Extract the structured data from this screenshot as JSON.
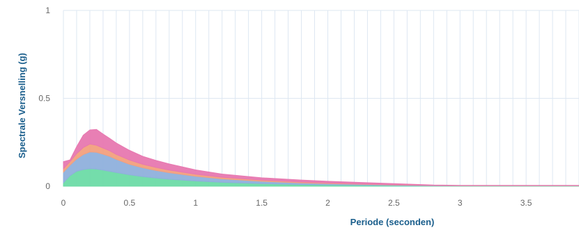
{
  "chart_data": {
    "type": "area",
    "stacked": true,
    "xlabel": "Periode (seconden)",
    "ylabel": "Spectrale Versnelling (g)",
    "xlim": [
      0,
      3.9
    ],
    "ylim": [
      0,
      1
    ],
    "x_ticks": [
      0,
      0.5,
      1,
      1.5,
      2,
      2.5,
      3,
      3.5
    ],
    "x_tick_labels": [
      "0",
      "0.5",
      "1",
      "1.5",
      "2",
      "2.5",
      "3",
      "3.5"
    ],
    "y_ticks": [
      0,
      0.5,
      1
    ],
    "y_tick_labels": [
      "0",
      "0.5",
      "1"
    ],
    "grid": true,
    "x": [
      0,
      0.05,
      0.1,
      0.15,
      0.2,
      0.25,
      0.3,
      0.35,
      0.4,
      0.5,
      0.6,
      0.7,
      0.8,
      1.0,
      1.2,
      1.5,
      1.8,
      2.0,
      2.5,
      2.8,
      3.0,
      3.5,
      3.9
    ],
    "series": [
      {
        "color": "#6ddba6",
        "values": [
          0.02,
          0.06,
          0.085,
          0.095,
          0.1,
          0.098,
          0.092,
          0.085,
          0.078,
          0.065,
          0.055,
          0.047,
          0.04,
          0.03,
          0.022,
          0.015,
          0.01,
          0.008,
          0.004,
          0.002,
          0.002,
          0.002,
          0.002
        ]
      },
      {
        "color": "#8fb0dc",
        "values": [
          0.06,
          0.06,
          0.07,
          0.085,
          0.095,
          0.095,
          0.09,
          0.085,
          0.075,
          0.06,
          0.05,
          0.043,
          0.037,
          0.027,
          0.02,
          0.013,
          0.009,
          0.007,
          0.003,
          0.002,
          0.001,
          0.001,
          0.001
        ]
      },
      {
        "color": "#f2a07e",
        "values": [
          0.02,
          0.02,
          0.03,
          0.04,
          0.045,
          0.04,
          0.035,
          0.032,
          0.028,
          0.024,
          0.02,
          0.017,
          0.015,
          0.011,
          0.009,
          0.007,
          0.005,
          0.004,
          0.002,
          0.001,
          0.001,
          0.001,
          0.001
        ]
      },
      {
        "color": "#e778b0",
        "values": [
          0.04,
          0.01,
          0.04,
          0.07,
          0.08,
          0.09,
          0.08,
          0.07,
          0.065,
          0.055,
          0.045,
          0.04,
          0.035,
          0.025,
          0.018,
          0.013,
          0.011,
          0.009,
          0.006,
          0.002,
          0.001,
          0.001,
          0.001
        ]
      }
    ]
  }
}
